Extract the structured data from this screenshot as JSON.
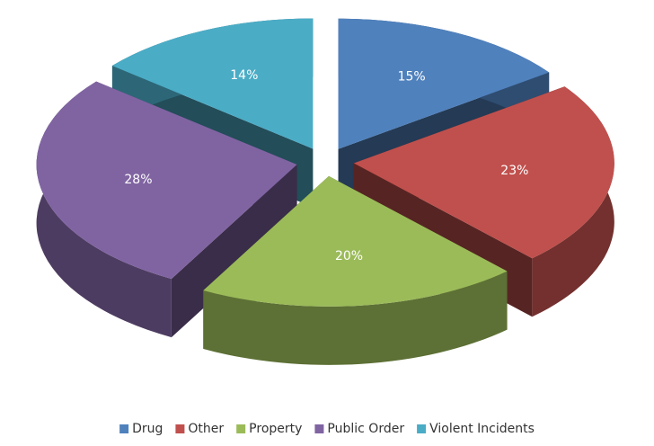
{
  "chart_data": {
    "type": "pie",
    "categories": [
      "Drug",
      "Other",
      "Property",
      "Public Order",
      "Violent Incidents"
    ],
    "values": [
      15,
      23,
      20,
      28,
      14
    ],
    "value_labels": [
      "15%",
      "23%",
      "20%",
      "28%",
      "14%"
    ],
    "colors": [
      "#4f81bd",
      "#c0504d",
      "#9bbb59",
      "#8064a2",
      "#4bacc6"
    ],
    "legend": "bottom"
  }
}
